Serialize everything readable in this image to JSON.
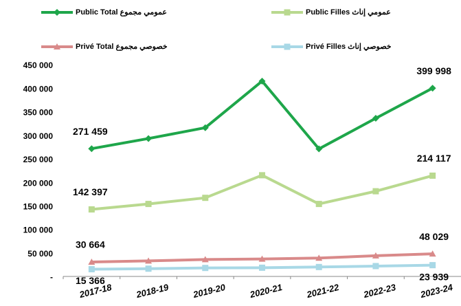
{
  "chart_data": {
    "type": "line",
    "categories": [
      "2017-18",
      "2018-19",
      "2019-20",
      "2020-21",
      "2021-22",
      "2022-23",
      "2023-24"
    ],
    "series": [
      {
        "name": "Public Total عمومي مجموع",
        "color": "#1ea64a",
        "marker": "diamond",
        "values": [
          271459,
          293000,
          316000,
          415000,
          271000,
          336000,
          399998
        ],
        "value_labels": [
          "271 459",
          null,
          null,
          null,
          null,
          null,
          "399 998"
        ]
      },
      {
        "name": "Public Filles عمومي إناث",
        "color": "#b9d98f",
        "marker": "square",
        "values": [
          142397,
          154000,
          167000,
          215000,
          154000,
          181000,
          214117
        ],
        "value_labels": [
          "142 397",
          null,
          null,
          null,
          null,
          null,
          "214 117"
        ]
      },
      {
        "name": "Privé Total خصوصي مجموع",
        "color": "#d98a8a",
        "marker": "triangle",
        "values": [
          30664,
          33000,
          36000,
          37000,
          39000,
          44000,
          48029
        ],
        "value_labels": [
          "30 664",
          null,
          null,
          null,
          null,
          null,
          "48 029"
        ]
      },
      {
        "name": "Privé Filles  خصوصي إناث",
        "color": "#a8d8e6",
        "marker": "square",
        "values": [
          15366,
          16500,
          18000,
          18500,
          20000,
          22000,
          23939
        ],
        "value_labels": [
          "15 366",
          null,
          null,
          null,
          null,
          null,
          "23 939"
        ]
      }
    ],
    "ylim": [
      0,
      450000
    ],
    "yticks": [
      {
        "value": 0,
        "label": "-"
      },
      {
        "value": 50000,
        "label": "50 000"
      },
      {
        "value": 100000,
        "label": "100 000"
      },
      {
        "value": 150000,
        "label": "150 000"
      },
      {
        "value": 200000,
        "label": "200 000"
      },
      {
        "value": 250000,
        "label": "250 000"
      },
      {
        "value": 300000,
        "label": "300 000"
      },
      {
        "value": 350000,
        "label": "350 000"
      },
      {
        "value": 400000,
        "label": "400 000"
      },
      {
        "value": 450000,
        "label": "450 000"
      }
    ],
    "legend": "top",
    "grid": false
  }
}
